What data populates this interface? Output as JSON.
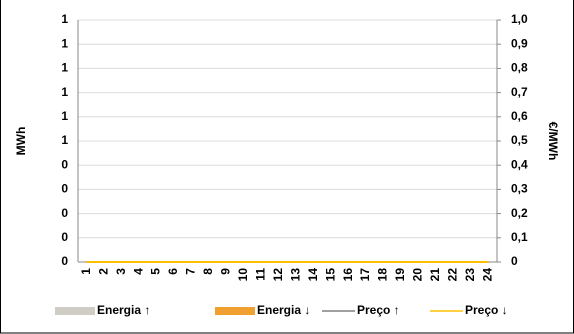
{
  "chart_data": {
    "type": "bar-line",
    "categories": [
      "1",
      "2",
      "3",
      "4",
      "5",
      "6",
      "7",
      "8",
      "9",
      "10",
      "11",
      "12",
      "13",
      "14",
      "15",
      "16",
      "17",
      "18",
      "19",
      "20",
      "21",
      "22",
      "23",
      "24"
    ],
    "y_label": "MWh",
    "y2_label": "€/MWh",
    "ylim": [
      0,
      1
    ],
    "yticks": [
      0,
      {
        "value": 0.1,
        "label": "0"
      },
      {
        "value": 0.2,
        "label": "0"
      },
      {
        "value": 0.3,
        "label": "0"
      },
      {
        "value": 0.4,
        "label": "0"
      },
      {
        "value": 0.5,
        "label": "1"
      },
      {
        "value": 0.6,
        "label": "1"
      },
      {
        "value": 0.7,
        "label": "1"
      },
      {
        "value": 0.8,
        "label": "1"
      },
      {
        "value": 0.9,
        "label": "1"
      },
      1
    ],
    "y2lim": [
      0,
      1
    ],
    "y2ticks": [
      0,
      {
        "value": 0.1,
        "label": "0,1"
      },
      {
        "value": 0.2,
        "label": "0,2"
      },
      {
        "value": 0.3,
        "label": "0,3"
      },
      {
        "value": 0.4,
        "label": "0,4"
      },
      {
        "value": 0.5,
        "label": "0,5"
      },
      {
        "value": 0.6,
        "label": "0,6"
      },
      {
        "value": 0.7,
        "label": "0,7"
      },
      {
        "value": 0.8,
        "label": "0,8"
      },
      {
        "value": 0.9,
        "label": "0,9"
      },
      {
        "value": 1,
        "label": "1,0"
      }
    ],
    "grid": true,
    "series": [
      {
        "name": "Energia ↑",
        "kind": "bar",
        "color": "#d0cdc6",
        "values": [
          0,
          0,
          0,
          0,
          0,
          0,
          0,
          0,
          0,
          0,
          0,
          0,
          0,
          0,
          0,
          0,
          0,
          0,
          0,
          0,
          0,
          0,
          0,
          0
        ]
      },
      {
        "name": "Energia ↓",
        "kind": "bar",
        "color": "#f0a030",
        "values": [
          0,
          0,
          0,
          0,
          0,
          0,
          0,
          0,
          0,
          0,
          0,
          0,
          0,
          0,
          0,
          0,
          0,
          0,
          0,
          0,
          0,
          0,
          0,
          0
        ]
      },
      {
        "name": "Preço ↑",
        "kind": "line",
        "axis": "y2",
        "color": "#808080",
        "values": [
          0,
          0,
          0,
          0,
          0,
          0,
          0,
          0,
          0,
          0,
          0,
          0,
          0,
          0,
          0,
          0,
          0,
          0,
          0,
          0,
          0,
          0,
          0,
          0
        ]
      },
      {
        "name": "Preço ↓",
        "kind": "line",
        "axis": "y2",
        "color": "#ffc000",
        "values": [
          0,
          0,
          0,
          0,
          0,
          0,
          0,
          0,
          0,
          0,
          0,
          0,
          0,
          0,
          0,
          0,
          0,
          0,
          0,
          0,
          0,
          0,
          0,
          0
        ]
      }
    ]
  }
}
